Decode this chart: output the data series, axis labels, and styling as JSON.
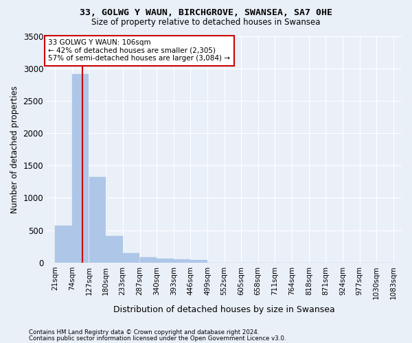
{
  "title1": "33, GOLWG Y WAUN, BIRCHGROVE, SWANSEA, SA7 0HE",
  "title2": "Size of property relative to detached houses in Swansea",
  "xlabel": "Distribution of detached houses by size in Swansea",
  "ylabel": "Number of detached properties",
  "footer1": "Contains HM Land Registry data © Crown copyright and database right 2024.",
  "footer2": "Contains public sector information licensed under the Open Government Licence v3.0.",
  "annotation_line1": "33 GOLWG Y WAUN: 106sqm",
  "annotation_line2": "← 42% of detached houses are smaller (2,305)",
  "annotation_line3": "57% of semi-detached houses are larger (3,084) →",
  "property_size_sqm": 106,
  "bin_edges": [
    21,
    74,
    127,
    180,
    233,
    287,
    340,
    393,
    446,
    499,
    552,
    605,
    658,
    711,
    764,
    818,
    871,
    924,
    977,
    1030,
    1083
  ],
  "bar_heights": [
    570,
    2910,
    1320,
    410,
    150,
    80,
    55,
    45,
    35,
    0,
    0,
    0,
    0,
    0,
    0,
    0,
    0,
    0,
    0,
    0
  ],
  "bar_color": "#aec6e8",
  "bar_edgecolor": "#aec6e8",
  "vline_color": "#cc0000",
  "vline_x": 106,
  "ylim": [
    0,
    3500
  ],
  "yticks": [
    0,
    500,
    1000,
    1500,
    2000,
    2500,
    3000,
    3500
  ],
  "bg_color": "#eaf0f8",
  "grid_color": "#ffffff",
  "annotation_box_edgecolor": "#cc0000",
  "annotation_box_facecolor": "#ffffff"
}
